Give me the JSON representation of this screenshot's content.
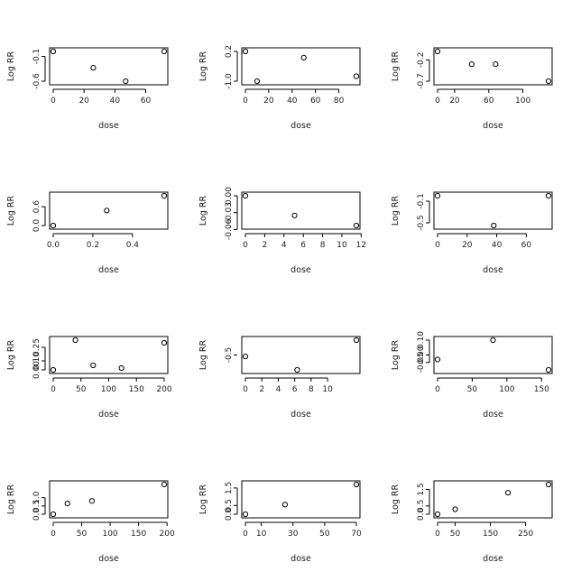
{
  "chart_data": [
    {
      "type": "scatter",
      "xlabel": "dose",
      "ylabel": "Log RR",
      "x": [
        0,
        26,
        47,
        72
      ],
      "y": [
        0.0,
        -0.33,
        -0.6,
        0.0
      ],
      "xlim": [
        0,
        72
      ],
      "ylim": [
        -0.6,
        0.0
      ],
      "xticks": [
        0,
        20,
        40,
        60
      ],
      "xtick_labels": [
        "0",
        "20",
        "40",
        "60"
      ],
      "yticks": [
        -0.1,
        -0.6
      ],
      "ytick_labels": [
        "-0.1",
        "-0.6"
      ]
    },
    {
      "type": "scatter",
      "xlabel": "dose",
      "ylabel": "Log RR",
      "x": [
        0,
        10,
        50,
        95
      ],
      "y": [
        0.2,
        -1.0,
        -0.05,
        -0.8
      ],
      "xlim": [
        0,
        95
      ],
      "ylim": [
        -1.0,
        0.2
      ],
      "xticks": [
        0,
        20,
        40,
        60,
        80
      ],
      "xtick_labels": [
        "0",
        "20",
        "40",
        "60",
        "80"
      ],
      "yticks": [
        0.2,
        -1.0
      ],
      "ytick_labels": [
        "0.2",
        "-1.0"
      ]
    },
    {
      "type": "scatter",
      "xlabel": "dose",
      "ylabel": "Log RR",
      "x": [
        0,
        40,
        68,
        130
      ],
      "y": [
        0.0,
        -0.3,
        -0.3,
        -0.7
      ],
      "xlim": [
        0,
        130
      ],
      "ylim": [
        -0.7,
        0.0
      ],
      "xticks": [
        0,
        20,
        60,
        100
      ],
      "xtick_labels": [
        "0",
        "20",
        "60",
        "100"
      ],
      "yticks": [
        -0.2,
        -0.7
      ],
      "ytick_labels": [
        "-0.2",
        "-0.7"
      ]
    },
    {
      "type": "scatter",
      "xlabel": "dose",
      "ylabel": "Log RR",
      "x": [
        0,
        0.27,
        0.56
      ],
      "y": [
        0.0,
        0.48,
        0.95
      ],
      "xlim": [
        0,
        0.56
      ],
      "ylim": [
        0.0,
        0.95
      ],
      "xticks": [
        0.0,
        0.2,
        0.4
      ],
      "xtick_labels": [
        "0.0",
        "0.2",
        "0.4"
      ],
      "yticks": [
        0.0,
        0.6
      ],
      "ytick_labels": [
        "0.0",
        "0.6"
      ]
    },
    {
      "type": "scatter",
      "xlabel": "dose",
      "ylabel": "Log RR",
      "x": [
        0,
        5.1,
        11.5
      ],
      "y": [
        0.0,
        -0.035,
        -0.053
      ],
      "xlim": [
        0,
        11.5
      ],
      "ylim": [
        -0.053,
        0.0
      ],
      "xticks": [
        0,
        2,
        4,
        6,
        8,
        10,
        12
      ],
      "xtick_labels": [
        "0",
        "2",
        "4",
        "6",
        "8",
        "10",
        "12"
      ],
      "yticks": [
        0.0,
        -0.03,
        -0.06
      ],
      "ytick_labels": [
        "0.00",
        "-0.03",
        "-0.06"
      ]
    },
    {
      "type": "scatter",
      "xlabel": "dose",
      "ylabel": "Log RR",
      "x": [
        0,
        38,
        75
      ],
      "y": [
        0.0,
        -0.55,
        0.0
      ],
      "xlim": [
        0,
        75
      ],
      "ylim": [
        -0.55,
        0.0
      ],
      "xticks": [
        0,
        20,
        40,
        60
      ],
      "xtick_labels": [
        "0",
        "20",
        "40",
        "60"
      ],
      "yticks": [
        -0.1,
        -0.5
      ],
      "ytick_labels": [
        "-0.1",
        "-0.5"
      ]
    },
    {
      "type": "scatter",
      "xlabel": "dose",
      "ylabel": "Log RR",
      "x": [
        0,
        40,
        72,
        123,
        200
      ],
      "y": [
        0.0,
        0.33,
        0.05,
        0.02,
        0.3
      ],
      "xlim": [
        0,
        200
      ],
      "ylim": [
        0.0,
        0.33
      ],
      "xticks": [
        0,
        50,
        100,
        150,
        200
      ],
      "xtick_labels": [
        "0",
        "50",
        "100",
        "150",
        "200"
      ],
      "yticks": [
        0.0,
        0.1,
        0.25
      ],
      "ytick_labels": [
        "0.00",
        "0.10",
        "0.25"
      ]
    },
    {
      "type": "scatter",
      "xlabel": "dose",
      "ylabel": "Log RR",
      "x": [
        0,
        6.3,
        13.5
      ],
      "y": [
        -0.55,
        -1.0,
        0.0
      ],
      "xlim": [
        0,
        13.5
      ],
      "ylim": [
        -1.0,
        0.0
      ],
      "xticks": [
        0,
        2,
        4,
        6,
        8,
        10
      ],
      "xtick_labels": [
        "0",
        "2",
        "4",
        "6",
        "8",
        "10"
      ],
      "yticks": [
        -0.5
      ],
      "ytick_labels": [
        "-0.5"
      ]
    },
    {
      "type": "scatter",
      "xlabel": "dose",
      "ylabel": "Log RR",
      "x": [
        0,
        80,
        160
      ],
      "y": [
        -0.03,
        0.1,
        -0.1
      ],
      "xlim": [
        0,
        160
      ],
      "ylim": [
        -0.1,
        0.1
      ],
      "xticks": [
        0,
        50,
        100,
        150
      ],
      "xtick_labels": [
        "0",
        "50",
        "100",
        "150"
      ],
      "yticks": [
        0.1,
        0.0,
        -0.05
      ],
      "ytick_labels": [
        "0.10",
        "0.00",
        "-0.05"
      ]
    },
    {
      "type": "scatter",
      "xlabel": "dose",
      "ylabel": "Log RR",
      "x": [
        0,
        25,
        68,
        195
      ],
      "y": [
        0.0,
        0.65,
        0.8,
        1.8
      ],
      "xlim": [
        0,
        195
      ],
      "ylim": [
        0.0,
        1.8
      ],
      "xticks": [
        0,
        50,
        100,
        150,
        200
      ],
      "xtick_labels": [
        "0",
        "50",
        "100",
        "150",
        "200"
      ],
      "yticks": [
        0.0,
        0.5,
        1.0
      ],
      "ytick_labels": [
        "0.0",
        "0.5",
        "1.0"
      ]
    },
    {
      "type": "scatter",
      "xlabel": "dose",
      "ylabel": "Log RR",
      "x": [
        0,
        25,
        70
      ],
      "y": [
        0.0,
        0.55,
        1.7
      ],
      "xlim": [
        0,
        70
      ],
      "ylim": [
        0.0,
        1.7
      ],
      "xticks": [
        0,
        10,
        30,
        50,
        70
      ],
      "xtick_labels": [
        "0",
        "10",
        "30",
        "50",
        "70"
      ],
      "yticks": [
        0.0,
        0.5,
        1.5
      ],
      "ytick_labels": [
        "0.0",
        "0.5",
        "1.5"
      ]
    },
    {
      "type": "scatter",
      "xlabel": "dose",
      "ylabel": "Log RR",
      "x": [
        0,
        50,
        200,
        315
      ],
      "y": [
        0.0,
        0.3,
        1.3,
        1.8
      ],
      "xlim": [
        0,
        315
      ],
      "ylim": [
        0.0,
        1.8
      ],
      "xticks": [
        0,
        50,
        150,
        250
      ],
      "xtick_labels": [
        "0",
        "50",
        "150",
        "250"
      ],
      "yticks": [
        0.0,
        0.5,
        1.5
      ],
      "ytick_labels": [
        "0.0",
        "0.5",
        "1.5"
      ]
    }
  ]
}
